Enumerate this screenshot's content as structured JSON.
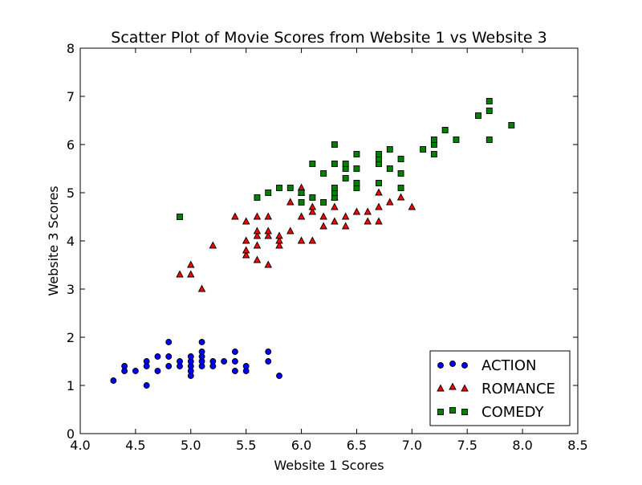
{
  "chart_data": {
    "type": "scatter",
    "title": "Scatter Plot of Movie Scores from Website 1 vs Website 3",
    "xlabel": "Website 1 Scores",
    "ylabel": "Website 3 Scores",
    "xlim": [
      4.0,
      8.5
    ],
    "ylim": [
      0,
      8
    ],
    "xticks": [
      4.0,
      4.5,
      5.0,
      5.5,
      6.0,
      6.5,
      7.0,
      7.5,
      8.0,
      8.5
    ],
    "xtick_labels": [
      "4.0",
      "4.5",
      "5.0",
      "5.5",
      "6.0",
      "6.5",
      "7.0",
      "7.5",
      "8.0",
      "8.5"
    ],
    "yticks": [
      0,
      1,
      2,
      3,
      4,
      5,
      6,
      7,
      8
    ],
    "ytick_labels": [
      "0",
      "1",
      "2",
      "3",
      "4",
      "5",
      "6",
      "7",
      "8"
    ],
    "grid": false,
    "legend_position": "lower-right",
    "series": [
      {
        "name": "ACTION",
        "marker": "circle",
        "color": "#0000ff",
        "points": [
          [
            4.3,
            1.1
          ],
          [
            4.4,
            1.3
          ],
          [
            4.4,
            1.4
          ],
          [
            4.5,
            1.3
          ],
          [
            4.6,
            1.0
          ],
          [
            4.6,
            1.4
          ],
          [
            4.6,
            1.5
          ],
          [
            4.7,
            1.3
          ],
          [
            4.7,
            1.6
          ],
          [
            4.8,
            1.4
          ],
          [
            4.8,
            1.6
          ],
          [
            4.8,
            1.9
          ],
          [
            4.9,
            1.4
          ],
          [
            4.9,
            1.5
          ],
          [
            5.0,
            1.2
          ],
          [
            5.0,
            1.3
          ],
          [
            5.0,
            1.4
          ],
          [
            5.0,
            1.5
          ],
          [
            5.0,
            1.6
          ],
          [
            5.1,
            1.4
          ],
          [
            5.1,
            1.5
          ],
          [
            5.1,
            1.6
          ],
          [
            5.1,
            1.7
          ],
          [
            5.1,
            1.9
          ],
          [
            5.2,
            1.4
          ],
          [
            5.2,
            1.5
          ],
          [
            5.3,
            1.5
          ],
          [
            5.4,
            1.3
          ],
          [
            5.4,
            1.5
          ],
          [
            5.4,
            1.7
          ],
          [
            5.5,
            1.3
          ],
          [
            5.5,
            1.4
          ],
          [
            5.7,
            1.5
          ],
          [
            5.7,
            1.7
          ],
          [
            5.8,
            1.2
          ]
        ]
      },
      {
        "name": "ROMANCE",
        "marker": "triangle",
        "color": "#ff0000",
        "points": [
          [
            4.9,
            3.3
          ],
          [
            5.0,
            3.3
          ],
          [
            5.0,
            3.5
          ],
          [
            5.1,
            3.0
          ],
          [
            5.2,
            3.9
          ],
          [
            5.4,
            4.5
          ],
          [
            5.5,
            3.7
          ],
          [
            5.5,
            3.8
          ],
          [
            5.5,
            4.0
          ],
          [
            5.5,
            4.4
          ],
          [
            5.6,
            3.6
          ],
          [
            5.6,
            3.9
          ],
          [
            5.6,
            4.1
          ],
          [
            5.6,
            4.2
          ],
          [
            5.6,
            4.5
          ],
          [
            5.7,
            3.5
          ],
          [
            5.7,
            4.1
          ],
          [
            5.7,
            4.2
          ],
          [
            5.7,
            4.5
          ],
          [
            5.8,
            3.9
          ],
          [
            5.8,
            4.0
          ],
          [
            5.8,
            4.1
          ],
          [
            5.9,
            4.2
          ],
          [
            5.9,
            4.8
          ],
          [
            6.0,
            4.0
          ],
          [
            6.0,
            4.5
          ],
          [
            6.0,
            5.0
          ],
          [
            6.0,
            5.1
          ],
          [
            6.1,
            4.0
          ],
          [
            6.1,
            4.6
          ],
          [
            6.1,
            4.7
          ],
          [
            6.2,
            4.3
          ],
          [
            6.2,
            4.5
          ],
          [
            6.3,
            4.4
          ],
          [
            6.3,
            4.7
          ],
          [
            6.3,
            4.9
          ],
          [
            6.4,
            4.3
          ],
          [
            6.4,
            4.5
          ],
          [
            6.5,
            4.6
          ],
          [
            6.6,
            4.4
          ],
          [
            6.6,
            4.6
          ],
          [
            6.7,
            4.4
          ],
          [
            6.7,
            4.7
          ],
          [
            6.7,
            5.0
          ],
          [
            6.8,
            4.8
          ],
          [
            6.9,
            4.9
          ],
          [
            7.0,
            4.7
          ]
        ]
      },
      {
        "name": "COMEDY",
        "marker": "square",
        "color": "#008000",
        "points": [
          [
            4.9,
            4.5
          ],
          [
            5.6,
            4.9
          ],
          [
            5.7,
            5.0
          ],
          [
            5.8,
            5.1
          ],
          [
            5.9,
            5.1
          ],
          [
            6.0,
            4.8
          ],
          [
            6.0,
            5.0
          ],
          [
            6.1,
            4.9
          ],
          [
            6.1,
            5.6
          ],
          [
            6.2,
            4.8
          ],
          [
            6.2,
            5.4
          ],
          [
            6.3,
            4.9
          ],
          [
            6.3,
            5.0
          ],
          [
            6.3,
            5.1
          ],
          [
            6.3,
            5.6
          ],
          [
            6.3,
            6.0
          ],
          [
            6.4,
            5.3
          ],
          [
            6.4,
            5.5
          ],
          [
            6.4,
            5.6
          ],
          [
            6.5,
            5.1
          ],
          [
            6.5,
            5.2
          ],
          [
            6.5,
            5.5
          ],
          [
            6.5,
            5.8
          ],
          [
            6.7,
            5.2
          ],
          [
            6.7,
            5.6
          ],
          [
            6.7,
            5.7
          ],
          [
            6.7,
            5.8
          ],
          [
            6.8,
            5.5
          ],
          [
            6.8,
            5.9
          ],
          [
            6.9,
            5.1
          ],
          [
            6.9,
            5.4
          ],
          [
            6.9,
            5.7
          ],
          [
            7.1,
            5.9
          ],
          [
            7.2,
            5.8
          ],
          [
            7.2,
            6.0
          ],
          [
            7.2,
            6.1
          ],
          [
            7.3,
            6.3
          ],
          [
            7.4,
            6.1
          ],
          [
            7.6,
            6.6
          ],
          [
            7.7,
            6.1
          ],
          [
            7.7,
            6.7
          ],
          [
            7.7,
            6.9
          ],
          [
            7.9,
            6.4
          ]
        ]
      }
    ]
  }
}
